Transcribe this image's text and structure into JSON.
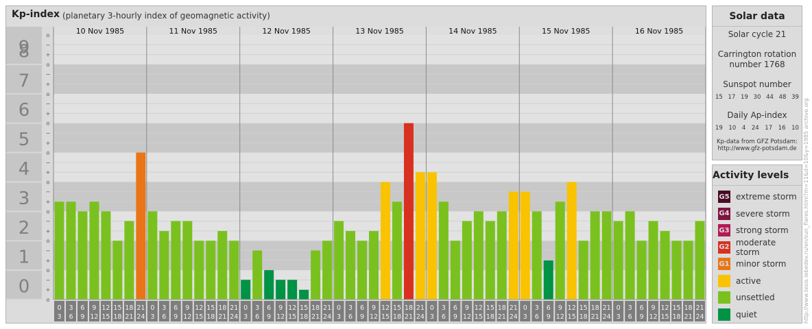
{
  "header": {
    "title": "Kp-index",
    "subtitle": "(planetary 3-hourly index of geomagnetic activity)"
  },
  "chart_data": {
    "type": "bar",
    "y_range": [
      0,
      9
    ],
    "y_ticks": [
      "0",
      "1",
      "2",
      "3",
      "4",
      "5",
      "6",
      "7",
      "8",
      "9"
    ],
    "sub_ticks": [
      "o",
      "+",
      "−"
    ],
    "days": [
      "10 Nov 1985",
      "11 Nov 1985",
      "12 Nov 1985",
      "13 Nov 1985",
      "14 Nov 1985",
      "15 Nov 1985",
      "16 Nov 1985"
    ],
    "interval_start": [
      "0",
      "3",
      "6",
      "9",
      "12",
      "15",
      "18",
      "21"
    ],
    "interval_end": [
      "3",
      "6",
      "9",
      "12",
      "15",
      "18",
      "21",
      "24"
    ],
    "values": [
      3.33,
      3.33,
      3.0,
      3.33,
      3.0,
      2.0,
      2.67,
      5.0,
      3.0,
      2.33,
      2.67,
      2.67,
      2.0,
      2.0,
      2.33,
      2.0,
      0.67,
      1.67,
      1.0,
      0.67,
      0.67,
      0.33,
      1.67,
      2.0,
      2.67,
      2.33,
      2.0,
      2.33,
      4.0,
      3.33,
      6.0,
      4.33,
      4.33,
      3.33,
      2.0,
      2.67,
      3.0,
      2.67,
      3.0,
      3.67,
      3.67,
      3.0,
      1.33,
      3.33,
      4.0,
      2.0,
      3.0,
      3.0,
      2.67,
      3.0,
      2.0,
      2.67,
      2.33,
      2.0,
      2.0,
      2.67
    ],
    "colors": {
      "quiet": "#009245",
      "unsettled": "#7ac11f",
      "active": "#f9c300",
      "minor": "#e97518",
      "moderate": "#d8311f",
      "strong": "#b31a56",
      "severe": "#7f1440",
      "extreme": "#4a0a26"
    }
  },
  "solar": {
    "title": "Solar data",
    "cycle": "Solar cycle 21",
    "carrington_line1": "Carrington rotation",
    "carrington_line2": "number 1768",
    "sunspot_title": "Sunspot number",
    "sunspot_values": [
      "15",
      "17",
      "19",
      "30",
      "44",
      "48",
      "39"
    ],
    "ap_title": "Daily Ap-index",
    "ap_values": [
      "19",
      "10",
      "4",
      "24",
      "17",
      "16",
      "10"
    ],
    "source_line1": "Kp-data from GFZ Potsdam:",
    "source_line2": "http://www.gfz-potsdam.de"
  },
  "activity": {
    "title": "Activity levels",
    "items": [
      {
        "badge": "G5",
        "label": "extreme storm",
        "color": "#4a0a26"
      },
      {
        "badge": "G4",
        "label": "severe storm",
        "color": "#7f1440"
      },
      {
        "badge": "G3",
        "label": "strong storm",
        "color": "#b31a56"
      },
      {
        "badge": "G2",
        "label": "moderate storm",
        "color": "#d8311f"
      },
      {
        "badge": "G1",
        "label": "minor storm",
        "color": "#e97518"
      },
      {
        "badge": "",
        "label": "active",
        "color": "#f9c300"
      },
      {
        "badge": "",
        "label": "unsettled",
        "color": "#7ac11f"
      },
      {
        "badge": "",
        "label": "quiet",
        "color": "#009245"
      }
    ]
  },
  "watermark": "http://www.tesis.lebedev.ru/en/sun_flares.html?m=11&d=10&y=1985 archive.org"
}
